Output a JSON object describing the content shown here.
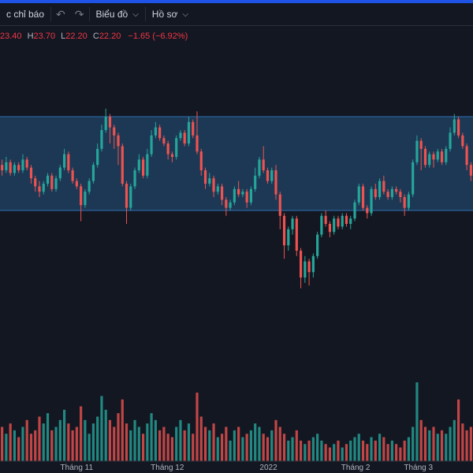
{
  "toolbar": {
    "indicators_label": "c chỉ báo",
    "undo_icon": "undo-icon",
    "redo_icon": "redo-icon",
    "chart_label": "Biểu đồ",
    "profile_label": "Hồ sơ"
  },
  "legend": {
    "open_value": "23.40",
    "high_key": "H",
    "high_value": "23.70",
    "low_key": "L",
    "low_value": "22.20",
    "close_key": "C",
    "close_value": "22.20",
    "change": "−1.65 (−6.92%)"
  },
  "colors": {
    "up": "#26a69a",
    "down": "#ef5350",
    "range_fill": "#1f3e5e",
    "range_border": "#2d6fb0",
    "background": "#131722"
  },
  "chart_data": {
    "type": "candlestick",
    "x_tick_labels": [
      "Tháng 11",
      "Tháng 12",
      "2022",
      "Tháng 2",
      "Tháng 3"
    ],
    "highlighted_range": [
      23.5,
      27.0
    ],
    "candles": [
      [
        25.2,
        25.0,
        25.4,
        24.8
      ],
      [
        25.0,
        25.3,
        25.5,
        24.9
      ],
      [
        25.3,
        24.9,
        25.4,
        24.8
      ],
      [
        24.9,
        25.2,
        25.3,
        24.8
      ],
      [
        25.2,
        25.0,
        25.3,
        24.9
      ],
      [
        25.0,
        25.4,
        25.6,
        24.9
      ],
      [
        25.4,
        25.1,
        25.5,
        25.0
      ],
      [
        25.1,
        24.7,
        25.2,
        24.5
      ],
      [
        24.7,
        24.4,
        24.8,
        24.2
      ],
      [
        24.4,
        24.2,
        24.6,
        24.0
      ],
      [
        24.2,
        24.5,
        24.6,
        24.1
      ],
      [
        24.5,
        24.8,
        24.9,
        24.4
      ],
      [
        24.8,
        24.3,
        24.9,
        24.2
      ],
      [
        24.3,
        24.7,
        24.8,
        24.2
      ],
      [
        24.7,
        25.1,
        25.2,
        24.6
      ],
      [
        25.1,
        25.6,
        25.8,
        25.0
      ],
      [
        25.6,
        25.0,
        25.7,
        24.9
      ],
      [
        25.0,
        24.6,
        25.1,
        24.5
      ],
      [
        24.6,
        24.4,
        24.7,
        24.3
      ],
      [
        24.4,
        23.7,
        24.5,
        23.1
      ],
      [
        23.7,
        24.2,
        24.3,
        23.6
      ],
      [
        24.2,
        24.6,
        24.7,
        24.1
      ],
      [
        24.6,
        25.2,
        25.3,
        24.5
      ],
      [
        25.2,
        25.8,
        26.0,
        25.1
      ],
      [
        25.8,
        26.5,
        26.7,
        25.7
      ],
      [
        26.5,
        27.0,
        27.3,
        26.4
      ],
      [
        27.0,
        26.6,
        27.1,
        26.0
      ],
      [
        26.6,
        26.3,
        26.7,
        25.8
      ],
      [
        26.3,
        25.9,
        26.4,
        25.2
      ],
      [
        25.9,
        24.5,
        26.0,
        24.4
      ],
      [
        24.5,
        23.6,
        24.6,
        23.0
      ],
      [
        23.6,
        24.4,
        24.5,
        23.5
      ],
      [
        24.4,
        25.0,
        25.1,
        24.3
      ],
      [
        25.0,
        25.4,
        25.6,
        24.9
      ],
      [
        25.4,
        24.8,
        25.5,
        24.7
      ],
      [
        24.8,
        25.6,
        25.8,
        24.7
      ],
      [
        25.6,
        26.3,
        26.5,
        25.5
      ],
      [
        26.3,
        26.6,
        26.8,
        26.2
      ],
      [
        26.6,
        26.2,
        26.7,
        26.1
      ],
      [
        26.2,
        26.0,
        26.3,
        25.9
      ],
      [
        26.0,
        25.6,
        26.1,
        25.4
      ],
      [
        25.6,
        25.5,
        25.7,
        25.3
      ],
      [
        25.5,
        26.2,
        26.3,
        25.4
      ],
      [
        26.2,
        26.4,
        26.5,
        26.1
      ],
      [
        26.4,
        26.0,
        26.5,
        25.9
      ],
      [
        26.0,
        26.8,
        27.0,
        25.9
      ],
      [
        26.8,
        26.3,
        26.9,
        26.2
      ],
      [
        26.3,
        25.7,
        27.2,
        25.6
      ],
      [
        25.7,
        25.0,
        25.8,
        24.8
      ],
      [
        25.0,
        24.5,
        25.1,
        24.3
      ],
      [
        24.5,
        24.7,
        24.9,
        24.4
      ],
      [
        24.7,
        24.2,
        24.8,
        24.0
      ],
      [
        24.2,
        24.4,
        24.5,
        24.1
      ],
      [
        24.4,
        23.9,
        24.5,
        23.7
      ],
      [
        23.9,
        23.6,
        24.0,
        23.3
      ],
      [
        23.6,
        23.8,
        23.9,
        23.5
      ],
      [
        23.8,
        24.3,
        24.4,
        23.7
      ],
      [
        24.3,
        24.1,
        24.6,
        24.0
      ],
      [
        24.1,
        24.2,
        24.3,
        24.0
      ],
      [
        24.2,
        23.8,
        24.3,
        23.6
      ],
      [
        23.8,
        24.3,
        24.4,
        23.7
      ],
      [
        24.3,
        24.8,
        25.1,
        24.2
      ],
      [
        24.8,
        25.4,
        25.5,
        24.7
      ],
      [
        25.4,
        25.0,
        25.9,
        24.9
      ],
      [
        25.0,
        24.6,
        25.1,
        24.5
      ],
      [
        24.6,
        25.0,
        25.1,
        24.5
      ],
      [
        25.0,
        24.1,
        25.2,
        23.9
      ],
      [
        24.1,
        23.3,
        24.2,
        22.8
      ],
      [
        23.3,
        22.2,
        23.4,
        21.7
      ],
      [
        22.2,
        22.8,
        22.9,
        22.0
      ],
      [
        22.8,
        23.2,
        23.3,
        22.6
      ],
      [
        23.2,
        22.0,
        23.3,
        21.8
      ],
      [
        22.0,
        21.0,
        22.1,
        20.6
      ],
      [
        21.0,
        21.6,
        21.8,
        20.8
      ],
      [
        21.6,
        21.2,
        21.7,
        20.7
      ],
      [
        21.2,
        21.8,
        21.9,
        21.0
      ],
      [
        21.8,
        22.6,
        22.7,
        21.7
      ],
      [
        22.6,
        23.3,
        23.4,
        22.5
      ],
      [
        23.3,
        23.0,
        23.5,
        22.9
      ],
      [
        23.0,
        22.7,
        23.1,
        22.5
      ],
      [
        22.7,
        23.2,
        23.3,
        22.6
      ],
      [
        23.2,
        22.9,
        23.3,
        22.8
      ],
      [
        22.9,
        23.3,
        23.4,
        22.8
      ],
      [
        23.3,
        23.0,
        23.4,
        22.9
      ],
      [
        23.0,
        23.2,
        23.3,
        22.8
      ],
      [
        23.2,
        23.8,
        23.9,
        23.1
      ],
      [
        23.8,
        24.4,
        24.5,
        23.7
      ],
      [
        24.4,
        23.6,
        24.5,
        23.5
      ],
      [
        23.6,
        23.4,
        23.7,
        23.2
      ],
      [
        23.4,
        24.3,
        24.4,
        23.3
      ],
      [
        24.3,
        24.0,
        24.5,
        23.9
      ],
      [
        24.0,
        24.6,
        24.7,
        23.9
      ],
      [
        24.6,
        24.2,
        24.8,
        24.1
      ],
      [
        24.2,
        24.0,
        24.3,
        23.9
      ],
      [
        24.0,
        24.3,
        24.4,
        23.9
      ],
      [
        24.3,
        24.2,
        24.4,
        24.1
      ],
      [
        24.2,
        24.0,
        24.3,
        23.8
      ],
      [
        24.0,
        23.6,
        24.1,
        23.3
      ],
      [
        23.6,
        24.1,
        24.2,
        23.5
      ],
      [
        24.1,
        25.3,
        25.4,
        24.0
      ],
      [
        25.3,
        26.1,
        26.3,
        25.2
      ],
      [
        26.1,
        25.8,
        26.2,
        25.0
      ],
      [
        25.8,
        25.2,
        25.9,
        25.1
      ],
      [
        25.2,
        25.6,
        25.7,
        25.1
      ],
      [
        25.6,
        25.4,
        25.7,
        25.1
      ],
      [
        25.4,
        25.7,
        25.8,
        25.3
      ],
      [
        25.7,
        25.3,
        25.8,
        25.2
      ],
      [
        25.3,
        25.8,
        25.9,
        25.2
      ],
      [
        25.8,
        26.4,
        26.6,
        25.7
      ],
      [
        26.4,
        26.9,
        27.1,
        26.3
      ],
      [
        26.9,
        26.3,
        27.0,
        26.2
      ],
      [
        26.3,
        25.9,
        26.4,
        25.8
      ],
      [
        25.9,
        25.2,
        26.0,
        25.0
      ],
      [
        25.2,
        24.8,
        25.3,
        24.6
      ]
    ],
    "volumes": [
      1.0,
      0.8,
      1.1,
      0.9,
      0.7,
      1.0,
      1.2,
      0.8,
      0.9,
      1.3,
      1.1,
      1.4,
      0.9,
      1.0,
      1.2,
      1.5,
      1.1,
      0.9,
      1.0,
      1.6,
      1.2,
      0.8,
      1.1,
      1.3,
      1.9,
      1.5,
      1.2,
      1.0,
      1.4,
      1.8,
      1.1,
      0.9,
      1.2,
      1.0,
      0.8,
      1.1,
      1.4,
      1.2,
      0.9,
      1.0,
      0.8,
      0.7,
      1.0,
      1.2,
      0.9,
      1.1,
      0.8,
      2.0,
      1.3,
      1.0,
      0.9,
      1.1,
      0.7,
      0.8,
      1.0,
      0.6,
      0.9,
      1.0,
      0.7,
      0.8,
      0.9,
      1.1,
      1.0,
      0.8,
      0.7,
      0.9,
      1.2,
      1.0,
      0.8,
      0.6,
      0.7,
      0.9,
      0.6,
      0.5,
      0.6,
      0.7,
      0.8,
      0.6,
      0.5,
      0.4,
      0.5,
      0.6,
      0.4,
      0.5,
      0.6,
      0.7,
      0.8,
      0.6,
      0.5,
      0.7,
      0.6,
      0.8,
      0.7,
      0.5,
      0.6,
      0.5,
      0.4,
      0.6,
      0.7,
      1.0,
      2.3,
      1.2,
      1.0,
      0.9,
      1.0,
      0.8,
      0.9,
      0.8,
      1.0,
      1.2,
      1.8,
      1.1,
      0.9,
      1.0
    ]
  }
}
